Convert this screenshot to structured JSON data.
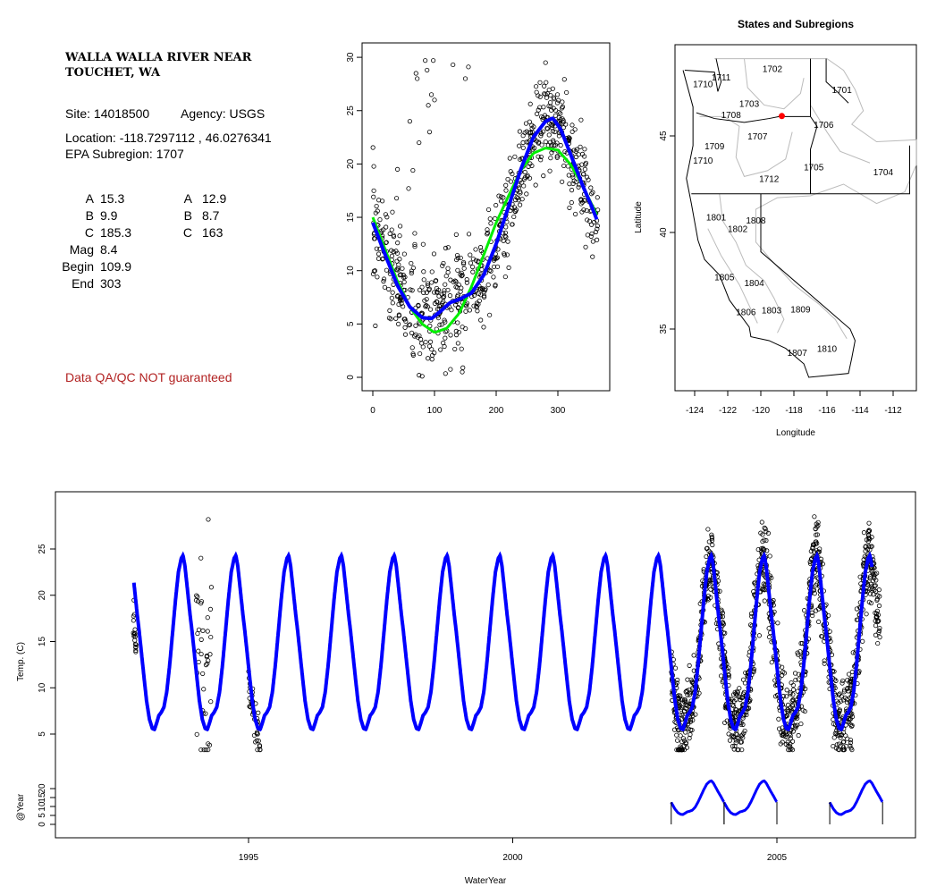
{
  "info": {
    "title_line1": "WALLA WALLA RIVER NEAR",
    "title_line2": "TOUCHET, WA",
    "site": "Site: 14018500",
    "agency": "Agency: USGS",
    "location": "Location: -118.7297112 , 46.0276341",
    "epa_subregion": "EPA Subregion: 1707",
    "params_left": [
      {
        "label": "A",
        "value": "15.3"
      },
      {
        "label": "B",
        "value": "9.9"
      },
      {
        "label": "C",
        "value": "185.3"
      },
      {
        "label": "Mag",
        "value": "8.4"
      },
      {
        "label": "Begin",
        "value": "109.9"
      },
      {
        "label": "End",
        "value": "303"
      }
    ],
    "params_right": [
      {
        "label": "A",
        "value": "12.9"
      },
      {
        "label": "B",
        "value": "8.7"
      },
      {
        "label": "C",
        "value": "163"
      }
    ],
    "disclaimer": "Data QA/QC NOT guaranteed",
    "disclaimer_color": "#b22222"
  },
  "chart_data": [
    {
      "type": "scatter",
      "name": "day-of-year plot",
      "title": "",
      "xlabel": "",
      "ylabel": "",
      "xlim": [
        -5,
        382
      ],
      "ylim": [
        -1,
        31.5
      ],
      "xticks": [
        "0",
        "100",
        "200",
        "300"
      ],
      "yticks": [
        "0",
        "5",
        "10",
        "15",
        "20",
        "25",
        "30"
      ],
      "observation_sd": 2.0,
      "observation_count": 700,
      "outliers": [
        [
          40,
          19.5
        ],
        [
          58,
          17.7
        ],
        [
          60,
          24
        ],
        [
          65,
          19.4
        ],
        [
          68,
          13.5
        ],
        [
          70,
          28.5
        ],
        [
          72,
          28
        ],
        [
          75,
          22
        ],
        [
          85,
          29.7
        ],
        [
          88,
          28.8
        ],
        [
          90,
          25.5
        ],
        [
          92,
          23
        ],
        [
          95,
          26.5
        ],
        [
          98,
          29.7
        ],
        [
          100,
          26
        ],
        [
          130,
          29.3
        ],
        [
          150,
          28
        ],
        [
          155,
          29.1
        ],
        [
          280,
          29.5
        ],
        [
          75,
          0.2
        ],
        [
          80,
          0.1
        ],
        [
          145,
          0.5
        ],
        [
          146,
          0.9
        ]
      ],
      "series": [
        {
          "name": "smoothed fit",
          "color": "#0000ff",
          "points": [
            [
              0,
              14.5
            ],
            [
              20,
              11.5
            ],
            [
              40,
              8.6
            ],
            [
              60,
              6.6
            ],
            [
              80,
              5.6
            ],
            [
              95,
              5.5
            ],
            [
              110,
              6.2
            ],
            [
              125,
              7.0
            ],
            [
              140,
              7.3
            ],
            [
              160,
              7.9
            ],
            [
              180,
              9.6
            ],
            [
              200,
              12.5
            ],
            [
              220,
              16
            ],
            [
              240,
              19.5
            ],
            [
              260,
              22.5
            ],
            [
              280,
              24
            ],
            [
              292,
              24.3
            ],
            [
              305,
              23.2
            ],
            [
              320,
              21
            ],
            [
              340,
              18
            ],
            [
              355,
              16
            ],
            [
              365,
              14.5
            ]
          ]
        },
        {
          "name": "sine fit",
          "color": "#00ee00",
          "points": [
            [
              0,
              15
            ],
            [
              20,
              12
            ],
            [
              40,
              9
            ],
            [
              60,
              6.6
            ],
            [
              80,
              5
            ],
            [
              100,
              4.2
            ],
            [
              120,
              4.6
            ],
            [
              140,
              6
            ],
            [
              160,
              8.5
            ],
            [
              180,
              11.5
            ],
            [
              200,
              14.5
            ],
            [
              220,
              17
            ],
            [
              240,
              19.4
            ],
            [
              260,
              21
            ],
            [
              280,
              21.5
            ],
            [
              300,
              21.3
            ],
            [
              320,
              20
            ],
            [
              340,
              18
            ],
            [
              365,
              15
            ]
          ]
        }
      ]
    },
    {
      "type": "map",
      "title": "States and Subregions",
      "xlabel": "Longitude",
      "ylabel": "Latitude",
      "xlim": [
        -125.2,
        -110.5
      ],
      "ylim": [
        32.3,
        50.2
      ],
      "xticks": [
        "-124",
        "-122",
        "-120",
        "-118",
        "-116",
        "-114",
        "-112"
      ],
      "yticks": [
        "35",
        "40",
        "45"
      ],
      "site": {
        "lon": -118.7297112,
        "lat": 46.0276341,
        "color": "#ff0000"
      },
      "subregions": [
        {
          "code": "1702",
          "lon": -119.3,
          "lat": 48.5
        },
        {
          "code": "1701",
          "lon": -115.1,
          "lat": 47.4
        },
        {
          "code": "1711",
          "lon": -122.4,
          "lat": 48.05
        },
        {
          "code": "1710",
          "lon": -123.5,
          "lat": 47.7
        },
        {
          "code": "1703",
          "lon": -120.7,
          "lat": 46.7
        },
        {
          "code": "1708",
          "lon": -121.8,
          "lat": 46.1
        },
        {
          "code": "1707",
          "lon": -120.2,
          "lat": 45.0
        },
        {
          "code": "1706",
          "lon": -116.2,
          "lat": 45.6
        },
        {
          "code": "1709",
          "lon": -122.8,
          "lat": 44.5
        },
        {
          "code": "1710",
          "lon": -123.5,
          "lat": 43.75
        },
        {
          "code": "1705",
          "lon": -116.8,
          "lat": 43.4
        },
        {
          "code": "1704",
          "lon": -112.6,
          "lat": 43.15
        },
        {
          "code": "1712",
          "lon": -119.5,
          "lat": 42.8
        },
        {
          "code": "1801",
          "lon": -122.7,
          "lat": 40.8
        },
        {
          "code": "1808",
          "lon": -120.3,
          "lat": 40.65
        },
        {
          "code": "1802",
          "lon": -121.4,
          "lat": 40.2
        },
        {
          "code": "1805",
          "lon": -122.2,
          "lat": 37.7
        },
        {
          "code": "1804",
          "lon": -120.4,
          "lat": 37.4
        },
        {
          "code": "1803",
          "lon": -119.35,
          "lat": 36.0
        },
        {
          "code": "1809",
          "lon": -117.6,
          "lat": 36.05
        },
        {
          "code": "1806",
          "lon": -120.9,
          "lat": 35.9
        },
        {
          "code": "1807",
          "lon": -117.8,
          "lat": 33.8
        },
        {
          "code": "1810",
          "lon": -116.0,
          "lat": 34.0
        }
      ]
    },
    {
      "type": "line",
      "name": "time series",
      "xlabel": "WaterYear",
      "ylabel": "Temp. (C)",
      "ylabel2": "@Year",
      "xlim": [
        1991.3,
        2007.6
      ],
      "ylim": [
        2.5,
        30
      ],
      "xticks": [
        "1995",
        "2000",
        "2005"
      ],
      "yticks": [
        "5",
        "10",
        "15",
        "20",
        "25"
      ],
      "yticks2": [
        "0",
        "5",
        "10",
        "15",
        "20"
      ],
      "model_start": 1992.83,
      "model_end": 2006.8,
      "phase_offset_year": 1992.96,
      "observation_periods": [
        {
          "start": 1992.82,
          "end": 1992.88,
          "n": 18,
          "sd": 1.0,
          "bias": -5
        },
        {
          "start": 1994.0,
          "end": 1994.3,
          "n": 40,
          "sd": 7.0,
          "bias": 6
        },
        {
          "start": 1995.0,
          "end": 1995.22,
          "n": 40,
          "sd": 1.3,
          "bias": -1
        },
        {
          "start": 2003.0,
          "end": 2006.95,
          "n": 1300,
          "sd": 2.2,
          "bias": 0
        }
      ],
      "annual_segments": [
        [
          2003,
          2004
        ],
        [
          2004,
          2005
        ],
        [
          2006,
          2007
        ]
      ]
    }
  ]
}
